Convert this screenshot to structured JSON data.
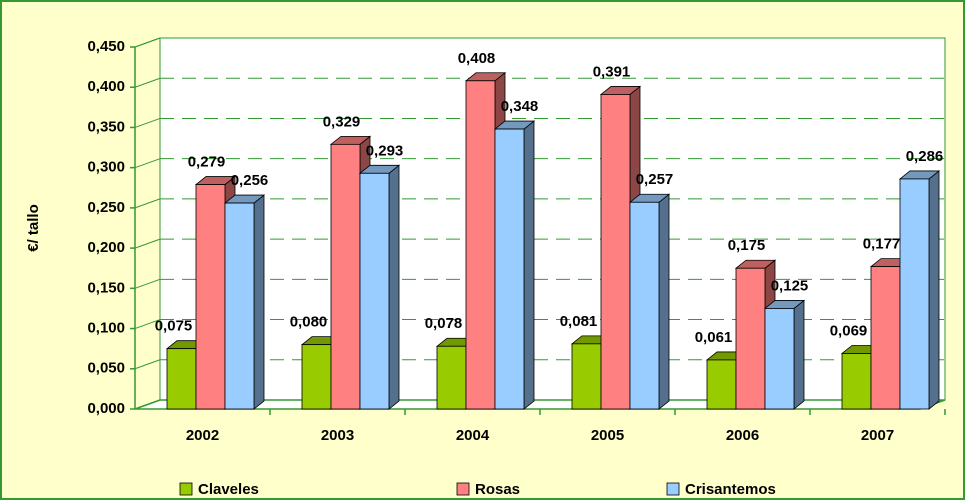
{
  "chart_data": {
    "type": "bar3d",
    "categories": [
      "2002",
      "2003",
      "2004",
      "2005",
      "2006",
      "2007"
    ],
    "ylabel": "€/ tallo",
    "ylim": [
      0,
      0.45
    ],
    "yticks": [
      {
        "value": 0,
        "label": "0,000"
      },
      {
        "value": 0.05,
        "label": "0,050"
      },
      {
        "value": 0.1,
        "label": "0,100"
      },
      {
        "value": 0.15,
        "label": "0,150"
      },
      {
        "value": 0.2,
        "label": "0,200"
      },
      {
        "value": 0.25,
        "label": "0,250"
      },
      {
        "value": 0.3,
        "label": "0,300"
      },
      {
        "value": 0.35,
        "label": "0,350"
      },
      {
        "value": 0.4,
        "label": "0,400"
      },
      {
        "value": 0.45,
        "label": "0,450"
      }
    ],
    "grid": true,
    "legend": "bottom",
    "series": [
      {
        "name": "Claveles",
        "color": "#99cc00",
        "values": [
          0.075,
          0.08,
          0.078,
          0.081,
          0.061,
          0.069
        ],
        "value_labels": [
          "0,075",
          "0,080",
          "0,078",
          "0,081",
          "0,061",
          "0,069"
        ]
      },
      {
        "name": "Rosas",
        "color": "#ff8080",
        "values": [
          0.279,
          0.329,
          0.408,
          0.391,
          0.175,
          0.177
        ],
        "value_labels": [
          "0,279",
          "0,329",
          "0,408",
          "0,391",
          "0,175",
          "0,177"
        ]
      },
      {
        "name": "Crisantemos",
        "color": "#99ccff",
        "values": [
          0.256,
          0.293,
          0.348,
          0.257,
          0.125,
          0.286
        ],
        "value_labels": [
          "0,256",
          "0,293",
          "0,348",
          "0,257",
          "0,125",
          "0,286"
        ]
      }
    ]
  }
}
